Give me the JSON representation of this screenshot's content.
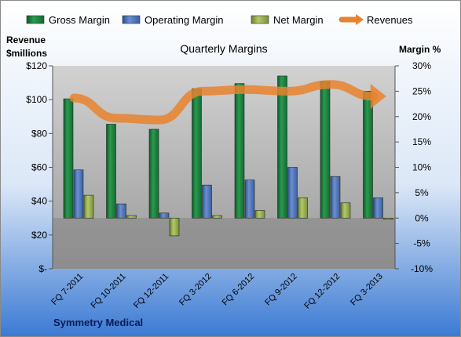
{
  "chart_data": {
    "type": "bar",
    "title": "Quarterly Margins",
    "company": "Symmetry Medical",
    "left_axis_label_line1": "Revenue",
    "left_axis_label_line2": "$millions",
    "right_axis_label": "Margin %",
    "categories": [
      "FQ 7-2011",
      "FQ 10-2011",
      "FQ 12-2011",
      "FQ 3-2012",
      "FQ 6-2012",
      "FQ 9-2012",
      "FQ 12-2012",
      "FQ 3-2013"
    ],
    "left_ticks": [
      "$120",
      "$100",
      "$80",
      "$60",
      "$40",
      "$20",
      "$-"
    ],
    "right_ticks": [
      "30%",
      "25%",
      "20%",
      "15%",
      "10%",
      "5%",
      "0%",
      "-5%",
      "-10%"
    ],
    "ylim_left": [
      0,
      120
    ],
    "ylim_right": [
      -10,
      30
    ],
    "series": [
      {
        "name": "Gross Margin",
        "axis": "right",
        "color": "#1e7a3e",
        "values": [
          23.5,
          18.5,
          17.5,
          25.5,
          26.5,
          28.0,
          27.0,
          25.0
        ]
      },
      {
        "name": "Operating Margin",
        "axis": "right",
        "color": "#4a6fb5",
        "values": [
          9.5,
          2.8,
          1.0,
          6.5,
          7.5,
          10.0,
          8.2,
          4.0
        ]
      },
      {
        "name": "Net Margin",
        "axis": "right",
        "color": "#8fa84a",
        "values": [
          4.5,
          0.5,
          -3.5,
          0.5,
          1.5,
          4.0,
          3.0,
          0.0
        ]
      },
      {
        "name": "Revenues",
        "axis": "left",
        "color": "#e8822e",
        "type": "line",
        "values": [
          101,
          89,
          88,
          105,
          106,
          105,
          109,
          102
        ]
      }
    ],
    "legend_position": "top"
  }
}
